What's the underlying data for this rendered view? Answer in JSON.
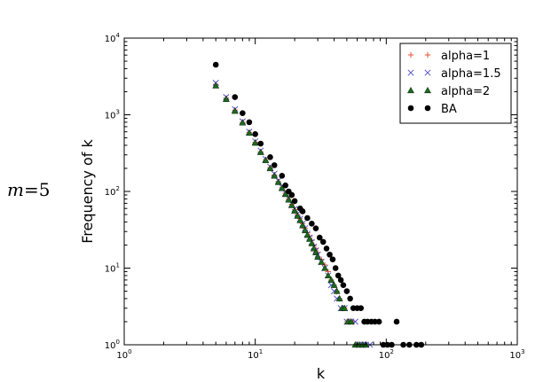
{
  "side_label": {
    "var": "m",
    "eq": "=5"
  },
  "chart_data": {
    "type": "scatter",
    "xscale": "log",
    "yscale": "log",
    "xlim": [
      1,
      1000
    ],
    "ylim": [
      1,
      10000
    ],
    "xlabel": "k",
    "ylabel": "Frequency of k",
    "xticks": [
      {
        "v": 1,
        "b": "10",
        "e": "0"
      },
      {
        "v": 10,
        "b": "10",
        "e": "1"
      },
      {
        "v": 100,
        "b": "10",
        "e": "2"
      },
      {
        "v": 1000,
        "b": "10",
        "e": "3"
      }
    ],
    "yticks": [
      {
        "v": 1,
        "b": "10",
        "e": "0"
      },
      {
        "v": 10,
        "b": "10",
        "e": "1"
      },
      {
        "v": 100,
        "b": "10",
        "e": "2"
      },
      {
        "v": 1000,
        "b": "10",
        "e": "3"
      },
      {
        "v": 10000,
        "b": "10",
        "e": "4"
      }
    ],
    "legend": "top-right",
    "series": [
      {
        "name": "alpha=1",
        "marker": "plus",
        "color": "#e8563a",
        "points": [
          [
            5,
            2500
          ],
          [
            6,
            1650
          ],
          [
            7,
            1150
          ],
          [
            8,
            800
          ],
          [
            9,
            590
          ],
          [
            10,
            440
          ],
          [
            11,
            330
          ],
          [
            12,
            260
          ],
          [
            13,
            205
          ],
          [
            14,
            165
          ],
          [
            15,
            135
          ],
          [
            16,
            112
          ],
          [
            17,
            95
          ],
          [
            18,
            80
          ],
          [
            19,
            68
          ],
          [
            20,
            58
          ],
          [
            21,
            50
          ],
          [
            22,
            44
          ],
          [
            23,
            38
          ],
          [
            24,
            33
          ],
          [
            25,
            29
          ],
          [
            26,
            26
          ],
          [
            27,
            23
          ],
          [
            28,
            20
          ],
          [
            29,
            18
          ],
          [
            30,
            16
          ],
          [
            32,
            13
          ],
          [
            34,
            11
          ],
          [
            36,
            9
          ],
          [
            38,
            7
          ],
          [
            40,
            6
          ],
          [
            42,
            5
          ],
          [
            44,
            4
          ],
          [
            46,
            3
          ],
          [
            48,
            3
          ],
          [
            50,
            2
          ],
          [
            53,
            2
          ],
          [
            56,
            2
          ],
          [
            60,
            1
          ],
          [
            64,
            1
          ],
          [
            68,
            1
          ]
        ]
      },
      {
        "name": "alpha=1.5",
        "marker": "x",
        "color": "#5555d0",
        "points": [
          [
            5,
            2600
          ],
          [
            6,
            1700
          ],
          [
            7,
            1180
          ],
          [
            8,
            820
          ],
          [
            9,
            600
          ],
          [
            10,
            450
          ],
          [
            11,
            340
          ],
          [
            12,
            265
          ],
          [
            13,
            210
          ],
          [
            14,
            170
          ],
          [
            15,
            138
          ],
          [
            16,
            114
          ],
          [
            17,
            96
          ],
          [
            18,
            81
          ],
          [
            19,
            69
          ],
          [
            20,
            59
          ],
          [
            21,
            51
          ],
          [
            22,
            44
          ],
          [
            23,
            38
          ],
          [
            24,
            33
          ],
          [
            25,
            28
          ],
          [
            26,
            25
          ],
          [
            27,
            22
          ],
          [
            28,
            19
          ],
          [
            29,
            17
          ],
          [
            30,
            15
          ],
          [
            32,
            12
          ],
          [
            34,
            10
          ],
          [
            36,
            8
          ],
          [
            38,
            6
          ],
          [
            40,
            5
          ],
          [
            42,
            4
          ],
          [
            45,
            3
          ],
          [
            48,
            3
          ],
          [
            50,
            2
          ],
          [
            54,
            2
          ],
          [
            58,
            2
          ],
          [
            62,
            1
          ],
          [
            66,
            1
          ],
          [
            70,
            1
          ],
          [
            75,
            1
          ]
        ]
      },
      {
        "name": "alpha=2",
        "marker": "triangle",
        "color": "#1a6b1a",
        "points": [
          [
            5,
            2400
          ],
          [
            6,
            1600
          ],
          [
            7,
            1120
          ],
          [
            8,
            790
          ],
          [
            9,
            580
          ],
          [
            10,
            430
          ],
          [
            11,
            325
          ],
          [
            12,
            255
          ],
          [
            13,
            200
          ],
          [
            14,
            160
          ],
          [
            15,
            132
          ],
          [
            16,
            110
          ],
          [
            17,
            92
          ],
          [
            18,
            78
          ],
          [
            19,
            66
          ],
          [
            20,
            56
          ],
          [
            21,
            48
          ],
          [
            22,
            42
          ],
          [
            23,
            36
          ],
          [
            24,
            31
          ],
          [
            25,
            27
          ],
          [
            26,
            24
          ],
          [
            27,
            21
          ],
          [
            28,
            18
          ],
          [
            29,
            16
          ],
          [
            30,
            14
          ],
          [
            32,
            12
          ],
          [
            34,
            10
          ],
          [
            36,
            8
          ],
          [
            38,
            7
          ],
          [
            40,
            6
          ],
          [
            42,
            5
          ],
          [
            44,
            4
          ],
          [
            46,
            3
          ],
          [
            48,
            3
          ],
          [
            51,
            2
          ],
          [
            54,
            2
          ],
          [
            58,
            1
          ],
          [
            62,
            1
          ],
          [
            66,
            1
          ],
          [
            70,
            1
          ]
        ]
      },
      {
        "name": "BA",
        "marker": "circle",
        "color": "#000000",
        "points": [
          [
            5,
            4500
          ],
          [
            7,
            1700
          ],
          [
            8,
            1050
          ],
          [
            9,
            800
          ],
          [
            10,
            560
          ],
          [
            11,
            420
          ],
          [
            13,
            280
          ],
          [
            14,
            220
          ],
          [
            16,
            160
          ],
          [
            17,
            120
          ],
          [
            18,
            100
          ],
          [
            19,
            90
          ],
          [
            20,
            75
          ],
          [
            22,
            60
          ],
          [
            23,
            55
          ],
          [
            25,
            45
          ],
          [
            27,
            38
          ],
          [
            29,
            33
          ],
          [
            31,
            25
          ],
          [
            33,
            22
          ],
          [
            35,
            18
          ],
          [
            37,
            15
          ],
          [
            39,
            13
          ],
          [
            41,
            10
          ],
          [
            43,
            8
          ],
          [
            45,
            7
          ],
          [
            47,
            6
          ],
          [
            50,
            5
          ],
          [
            53,
            4
          ],
          [
            56,
            3
          ],
          [
            60,
            3
          ],
          [
            64,
            3
          ],
          [
            68,
            2
          ],
          [
            72,
            2
          ],
          [
            77,
            2
          ],
          [
            82,
            2
          ],
          [
            88,
            2
          ],
          [
            95,
            1
          ],
          [
            102,
            1
          ],
          [
            110,
            1
          ],
          [
            120,
            2
          ],
          [
            135,
            1
          ],
          [
            150,
            1
          ],
          [
            170,
            1
          ],
          [
            185,
            1
          ]
        ]
      }
    ]
  }
}
